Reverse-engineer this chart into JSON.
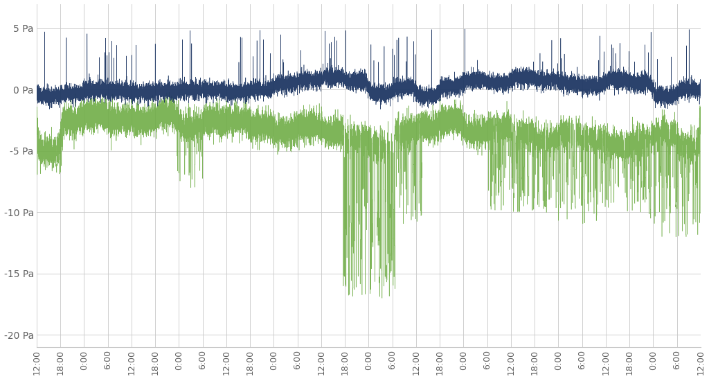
{
  "title": "",
  "ylabel": "",
  "xlabel": "",
  "ylim": [
    -21,
    7
  ],
  "yticks": [
    5,
    0,
    -5,
    -10,
    -15,
    -20
  ],
  "ytick_labels": [
    "5 Pa",
    "0 Pa",
    "-5 Pa",
    "-10 Pa",
    "-15 Pa",
    "-20 Pa"
  ],
  "xtick_labels": [
    "12:00",
    "18:00",
    "0:00",
    "6:00",
    "12:00",
    "18:00",
    "0:00",
    "6:00",
    "12:00",
    "18:00",
    "0:00",
    "6:00",
    "12:00",
    "18:00",
    "0:00",
    "6:00",
    "12:00",
    "18:00",
    "0:00",
    "6:00",
    "12:00",
    "18:00",
    "0:00",
    "6:00",
    "12:00",
    "18:00",
    "0:00",
    "6:00",
    "12:00"
  ],
  "blue_color": "#1F3864",
  "green_color": "#70AD47",
  "bg_color": "#FFFFFF",
  "grid_color": "#C8C8C8",
  "n_points": 20000,
  "seed": 7
}
